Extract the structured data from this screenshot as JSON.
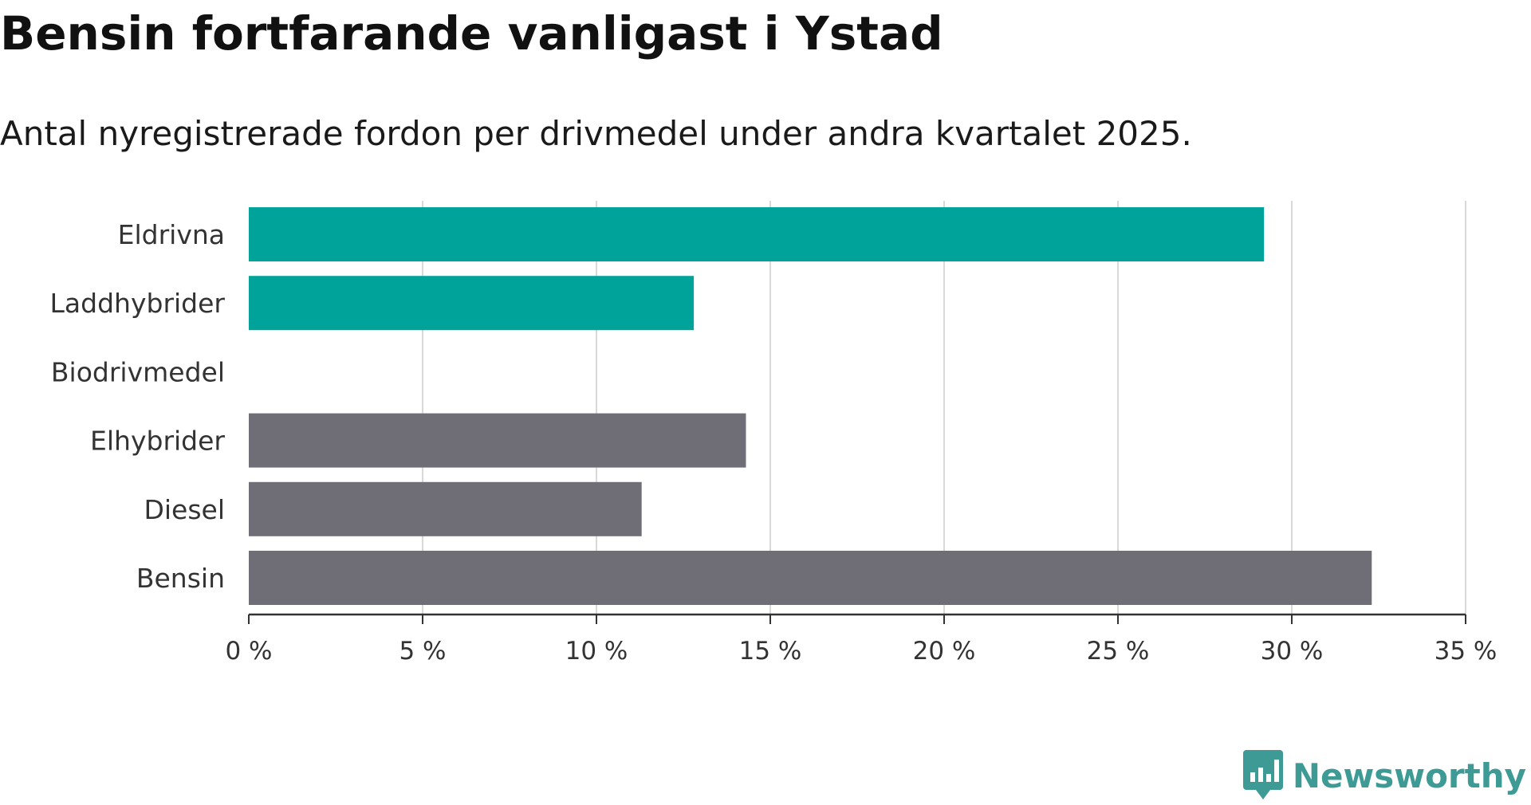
{
  "chart_data": {
    "type": "bar",
    "orientation": "horizontal",
    "title": "Bensin fortfarande vanligast i Ystad",
    "subtitle": "Antal nyregistrerade fordon per drivmedel under andra kvartalet 2025.",
    "categories": [
      "Eldrivna",
      "Laddhybrider",
      "Biodrivmedel",
      "Elhybrider",
      "Diesel",
      "Bensin"
    ],
    "values": [
      29.2,
      12.8,
      0,
      14.3,
      11.3,
      32.3
    ],
    "bar_colors": [
      "#00a39a",
      "#00a39a",
      "#00a39a",
      "#6f6e77",
      "#6f6e77",
      "#6f6e77"
    ],
    "xlim": [
      0,
      35
    ],
    "xticks": [
      {
        "value": 0,
        "label": "0 %"
      },
      {
        "value": 5,
        "label": "5 %"
      },
      {
        "value": 10,
        "label": "10 %"
      },
      {
        "value": 15,
        "label": "15 %"
      },
      {
        "value": 20,
        "label": "20 %"
      },
      {
        "value": 25,
        "label": "25 %"
      },
      {
        "value": 30,
        "label": "30 %"
      },
      {
        "value": 35,
        "label": "35 %"
      }
    ],
    "grid": true,
    "grid_color": "#d9d9d9",
    "axis_color": "#333333"
  },
  "branding": {
    "logo_text": "Newsworthy",
    "logo_color": "#3d9a94"
  }
}
